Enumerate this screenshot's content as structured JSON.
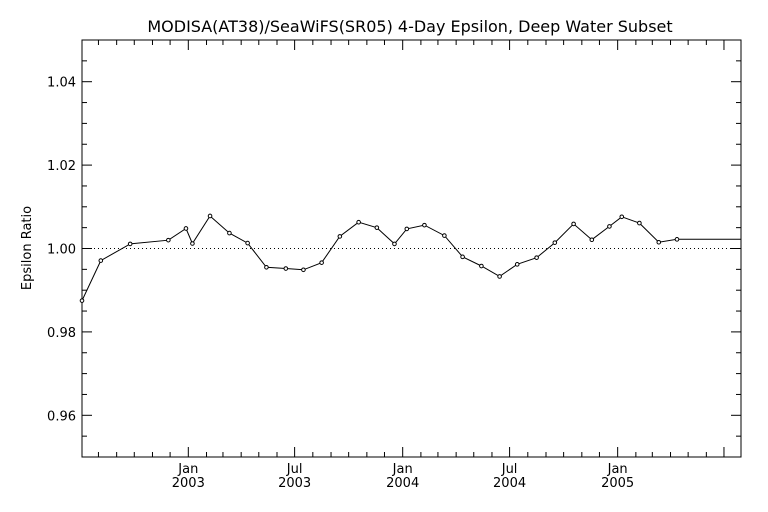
{
  "chart_data": {
    "type": "line",
    "title": "MODISA(AT38)/SeaWiFS(SR05) 4-Day Epsilon, Deep Water Subset",
    "xlabel": "",
    "ylabel": "Epsilon Ratio",
    "ylim": [
      0.95,
      1.05
    ],
    "xlim": [
      "2002-07-04",
      "2005-07-30"
    ],
    "y_ticks": [
      "0.96",
      "0.98",
      "1.00",
      "1.02",
      "1.04"
    ],
    "x_ticks": [
      {
        "month": "Jan",
        "year": "2003",
        "date": "2003-01-01"
      },
      {
        "month": "Jul",
        "year": "2003",
        "date": "2003-07-01"
      },
      {
        "month": "Jan",
        "year": "2004",
        "date": "2004-01-01"
      },
      {
        "month": "Jul",
        "year": "2004",
        "date": "2004-07-01"
      },
      {
        "month": "Jan",
        "year": "2005",
        "date": "2005-01-01"
      }
    ],
    "reference_line": 1.0,
    "grid": false,
    "series": [
      {
        "x": [
          "2002-07-04",
          "2002-08-05",
          "2002-09-24",
          "2002-11-28",
          "2002-12-28",
          "2003-01-08",
          "2003-02-07",
          "2003-03-12",
          "2003-04-12",
          "2003-05-14",
          "2003-06-16",
          "2003-07-16",
          "2003-08-16",
          "2003-09-16",
          "2003-10-18",
          "2003-11-18",
          "2003-12-18",
          "2004-01-08",
          "2004-02-07",
          "2004-03-12",
          "2004-04-12",
          "2004-05-14",
          "2004-06-14",
          "2004-07-14",
          "2004-08-16",
          "2004-09-16",
          "2004-10-18",
          "2004-11-18",
          "2004-12-18",
          "2005-01-08",
          "2005-02-07",
          "2005-03-12",
          "2005-04-12",
          "2005-07-30"
        ],
        "y": [
          0.9875,
          0.9971,
          1.0011,
          1.002,
          1.0048,
          1.0012,
          1.0078,
          1.0037,
          1.0013,
          0.9955,
          0.9952,
          0.9949,
          0.9966,
          1.0029,
          1.0063,
          1.005,
          1.0011,
          1.0047,
          1.0056,
          1.0031,
          0.998,
          0.9958,
          0.9933,
          0.9962,
          0.9978,
          1.0014,
          1.0059,
          1.0021,
          1.0053,
          1.0076,
          1.0061,
          1.0015,
          1.0022,
          1.0022
        ]
      }
    ]
  }
}
